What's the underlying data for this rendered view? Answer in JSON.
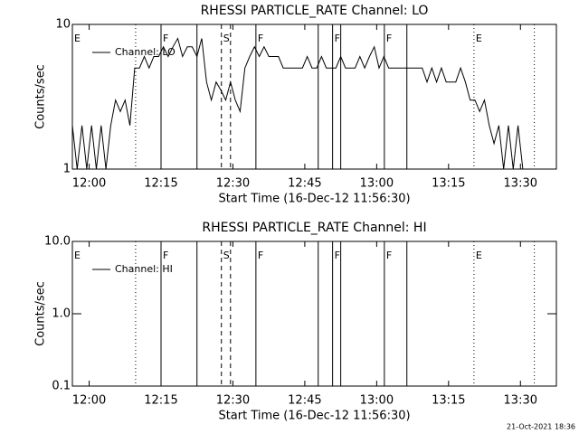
{
  "chart_data": [
    {
      "type": "line",
      "title": "RHESSI PARTICLE_RATE Channel: LO",
      "xlabel": "Start Time (16-Dec-12 11:56:30)",
      "ylabel": "Counts/sec",
      "log_y": true,
      "legend": "upper left",
      "x": [
        0,
        1,
        2,
        3,
        4,
        5,
        6,
        7,
        8,
        9,
        10,
        11,
        12,
        13,
        14,
        15,
        16,
        17,
        18,
        19,
        20,
        21,
        22,
        23,
        24,
        25,
        26,
        27,
        28,
        29,
        30,
        31,
        32,
        33,
        34,
        35,
        36,
        37,
        38,
        39,
        40,
        41,
        42,
        43,
        44,
        45,
        46,
        47,
        48,
        49,
        50,
        51,
        52,
        53,
        54,
        55,
        56,
        57,
        58,
        59,
        60,
        61,
        62,
        63,
        64,
        65,
        66,
        67,
        68,
        69,
        70,
        71,
        72,
        73,
        74,
        75,
        76,
        77,
        78,
        79,
        80,
        81,
        82,
        83,
        84,
        85,
        86,
        87,
        88,
        89,
        90,
        91,
        92,
        93,
        94,
        95,
        96
      ],
      "series": [
        {
          "name": "Channel: LO",
          "color": "#000000",
          "values": [
            2,
            1,
            2,
            1,
            2,
            1,
            2,
            1,
            2,
            3,
            2.5,
            3,
            2,
            5,
            5,
            6,
            5,
            6,
            6,
            7,
            6,
            7,
            8,
            6,
            7,
            7,
            6,
            8,
            4,
            3,
            4,
            3.5,
            3,
            4,
            3,
            2.5,
            5,
            6,
            7,
            6,
            7,
            6,
            6,
            6,
            5,
            5,
            5,
            5,
            5,
            6,
            5,
            5,
            6,
            5,
            5,
            5,
            6,
            5,
            5,
            5,
            6,
            5,
            6,
            7,
            5,
            6,
            5,
            5,
            5,
            5,
            5,
            5,
            5,
            5,
            4,
            5,
            4,
            5,
            4,
            4,
            4,
            5,
            4,
            3,
            3,
            2.5,
            3,
            2,
            1.5,
            2,
            1,
            2,
            1,
            2,
            1,
            1,
            1
          ]
        }
      ],
      "xlim": [
        0,
        101
      ],
      "xticks": [
        {
          "value": 3.5,
          "label": "12:00"
        },
        {
          "value": 18.5,
          "label": "12:15"
        },
        {
          "value": 33.5,
          "label": "12:30"
        },
        {
          "value": 48.5,
          "label": "12:45"
        },
        {
          "value": 63.5,
          "label": "13:00"
        },
        {
          "value": 78.5,
          "label": "13:15"
        },
        {
          "value": 93.5,
          "label": "13:30"
        }
      ],
      "ylim": [
        1,
        10
      ],
      "yticks": [
        1,
        10
      ],
      "vlines": [
        {
          "x": 13.2,
          "style": "dotted"
        },
        {
          "x": 18.5,
          "style": "solid"
        },
        {
          "x": 26.0,
          "style": "solid"
        },
        {
          "x": 31.1,
          "style": "dashed"
        },
        {
          "x": 33.0,
          "style": "dashed"
        },
        {
          "x": 38.3,
          "style": "solid"
        },
        {
          "x": 51.3,
          "style": "solid"
        },
        {
          "x": 54.3,
          "style": "solid"
        },
        {
          "x": 56.0,
          "style": "solid"
        },
        {
          "x": 65.1,
          "style": "solid"
        },
        {
          "x": 69.8,
          "style": "solid"
        },
        {
          "x": 83.8,
          "style": "dotted"
        },
        {
          "x": 96.4,
          "style": "dotted"
        }
      ],
      "flags": [
        {
          "x": 0,
          "label": "E"
        },
        {
          "x": 18.5,
          "label": "F"
        },
        {
          "x": 31.1,
          "label": "S"
        },
        {
          "x": 38.3,
          "label": "F"
        },
        {
          "x": 54.3,
          "label": "F"
        },
        {
          "x": 65.1,
          "label": "F"
        },
        {
          "x": 83.8,
          "label": "E"
        }
      ]
    },
    {
      "type": "line",
      "title": "RHESSI PARTICLE_RATE Channel: HI",
      "xlabel": "Start Time (16-Dec-12 11:56:30)",
      "ylabel": "Counts/sec",
      "log_y": true,
      "legend": "upper left",
      "series": [
        {
          "name": "Channel: HI",
          "color": "#000000"
        }
      ],
      "xlim": [
        0,
        101
      ],
      "xticks": [
        {
          "value": 3.5,
          "label": "12:00"
        },
        {
          "value": 18.5,
          "label": "12:15"
        },
        {
          "value": 33.5,
          "label": "12:30"
        },
        {
          "value": 48.5,
          "label": "12:45"
        },
        {
          "value": 63.5,
          "label": "13:00"
        },
        {
          "value": 78.5,
          "label": "13:15"
        },
        {
          "value": 93.5,
          "label": "13:30"
        }
      ],
      "ylim": [
        0.1,
        10
      ],
      "yticks": [
        0.1,
        {
          "value": 1,
          "label": "1.0"
        },
        {
          "value": 10,
          "label": "10.0"
        }
      ],
      "vlines": [
        {
          "x": 13.2,
          "style": "dotted"
        },
        {
          "x": 18.5,
          "style": "solid"
        },
        {
          "x": 26.0,
          "style": "solid"
        },
        {
          "x": 31.1,
          "style": "dashed"
        },
        {
          "x": 33.0,
          "style": "dashed"
        },
        {
          "x": 38.3,
          "style": "solid"
        },
        {
          "x": 51.3,
          "style": "solid"
        },
        {
          "x": 54.3,
          "style": "solid"
        },
        {
          "x": 56.0,
          "style": "solid"
        },
        {
          "x": 65.1,
          "style": "solid"
        },
        {
          "x": 69.8,
          "style": "solid"
        },
        {
          "x": 83.8,
          "style": "dotted"
        },
        {
          "x": 96.4,
          "style": "dotted"
        }
      ],
      "flags": [
        {
          "x": 0,
          "label": "E"
        },
        {
          "x": 18.5,
          "label": "F"
        },
        {
          "x": 31.1,
          "label": "S"
        },
        {
          "x": 38.3,
          "label": "F"
        },
        {
          "x": 54.3,
          "label": "F"
        },
        {
          "x": 65.1,
          "label": "F"
        },
        {
          "x": 83.8,
          "label": "E"
        }
      ]
    }
  ],
  "footer": "21-Oct-2021 18:36"
}
